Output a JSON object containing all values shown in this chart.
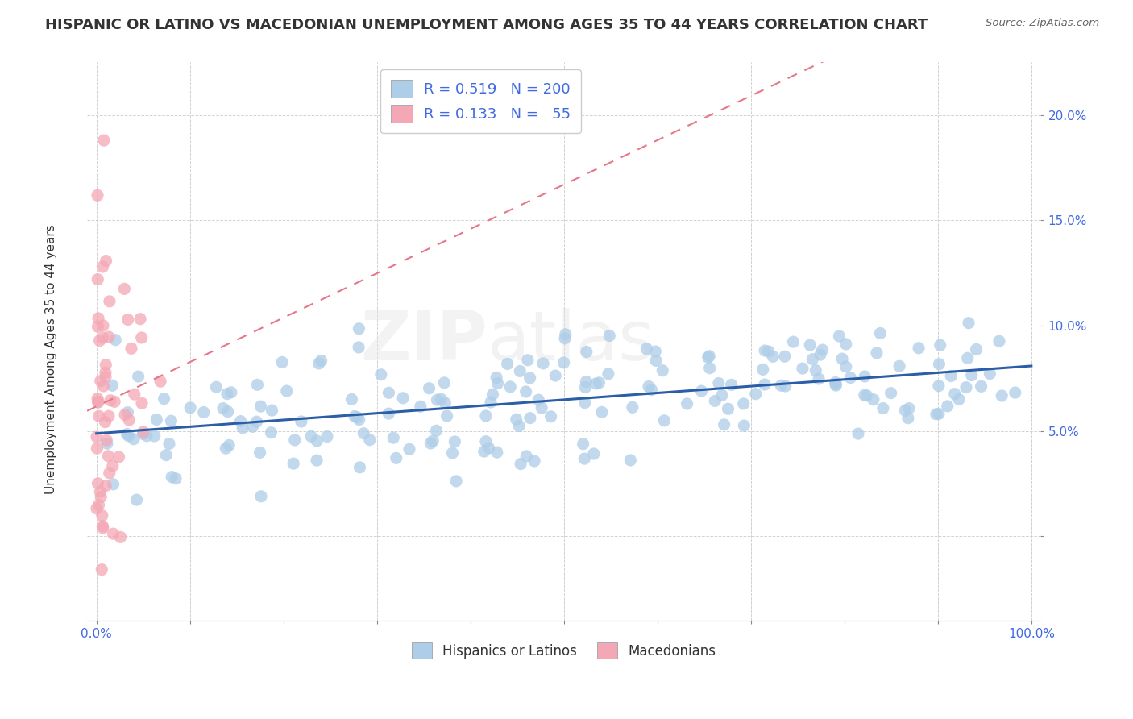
{
  "title": "HISPANIC OR LATINO VS MACEDONIAN UNEMPLOYMENT AMONG AGES 35 TO 44 YEARS CORRELATION CHART",
  "source": "Source: ZipAtlas.com",
  "ylabel": "Unemployment Among Ages 35 to 44 years",
  "xlim": [
    -0.01,
    1.01
  ],
  "ylim": [
    -0.04,
    0.225
  ],
  "ytick_vals": [
    0.0,
    0.05,
    0.1,
    0.15,
    0.2
  ],
  "ytick_labels": [
    "",
    "5.0%",
    "10.0%",
    "15.0%",
    "20.0%"
  ],
  "xtick_vals": [
    0.0,
    0.1,
    0.2,
    0.3,
    0.4,
    0.5,
    0.6,
    0.7,
    0.8,
    0.9,
    1.0
  ],
  "R1": 0.519,
  "N1": 200,
  "R2": 0.133,
  "N2": 55,
  "color1": "#aecde8",
  "color2": "#f4a7b5",
  "trend1_color": "#2b5ea7",
  "trend2_color": "#e8768a",
  "legend1_label": "Hispanics or Latinos",
  "legend2_label": "Macedonians",
  "watermark_zip": "ZIP",
  "watermark_atlas": "atlas",
  "title_fontsize": 13,
  "ylabel_fontsize": 11,
  "tick_fontsize": 11,
  "legend_fontsize": 13,
  "axis_color": "#4169E1",
  "text_color": "#333333",
  "grid_color": "#cccccc",
  "seed": 7
}
